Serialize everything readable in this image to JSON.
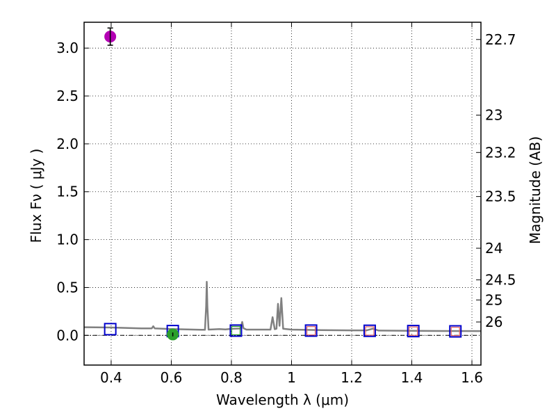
{
  "chart_data": {
    "type": "scatter",
    "xlabel": "Wavelength  λ (μm)",
    "ylabel": "Flux  Fν  ( μJy )",
    "ylabel_right": "Magnitude (AB)",
    "xlim": [
      0.31,
      1.63
    ],
    "ylim": [
      -0.31,
      3.27
    ],
    "x_ticks": [
      0.4,
      0.6,
      0.8,
      1.0,
      1.2,
      1.4,
      1.6
    ],
    "x_tick_labels": [
      "0.4",
      "0.6",
      "0.8",
      "1",
      "1.2",
      "1.4",
      "1.6"
    ],
    "y_ticks": [
      0.0,
      0.5,
      1.0,
      1.5,
      2.0,
      2.5,
      3.0
    ],
    "y_tick_labels": [
      "0.0",
      "0.5",
      "1.0",
      "1.5",
      "2.0",
      "2.5",
      "3.0"
    ],
    "right_ticks": [
      {
        "flux": 3.09,
        "label": "22.7"
      },
      {
        "flux": 2.3,
        "label": "23"
      },
      {
        "flux": 1.91,
        "label": "23.2"
      },
      {
        "flux": 1.45,
        "label": "23.5"
      },
      {
        "flux": 0.91,
        "label": "24"
      },
      {
        "flux": 0.58,
        "label": "24.5"
      },
      {
        "flux": 0.37,
        "label": "25"
      },
      {
        "flux": 0.14,
        "label": "26"
      }
    ],
    "grid": true,
    "series": [
      {
        "kind": "line",
        "color": "#808080",
        "points": [
          [
            0.31,
            0.085
          ],
          [
            0.4,
            0.082
          ],
          [
            0.5,
            0.073
          ],
          [
            0.535,
            0.073
          ],
          [
            0.54,
            0.095
          ],
          [
            0.545,
            0.073
          ],
          [
            0.6,
            0.066
          ],
          [
            0.7,
            0.058
          ],
          [
            0.712,
            0.058
          ],
          [
            0.716,
            0.3
          ],
          [
            0.718,
            0.56
          ],
          [
            0.72,
            0.3
          ],
          [
            0.724,
            0.06
          ],
          [
            0.76,
            0.066
          ],
          [
            0.78,
            0.062
          ],
          [
            0.8,
            0.068
          ],
          [
            0.83,
            0.072
          ],
          [
            0.836,
            0.14
          ],
          [
            0.84,
            0.075
          ],
          [
            0.85,
            0.06
          ],
          [
            0.93,
            0.06
          ],
          [
            0.937,
            0.19
          ],
          [
            0.944,
            0.065
          ],
          [
            0.95,
            0.07
          ],
          [
            0.955,
            0.33
          ],
          [
            0.96,
            0.1
          ],
          [
            0.966,
            0.39
          ],
          [
            0.972,
            0.07
          ],
          [
            1.0,
            0.06
          ],
          [
            1.1,
            0.055
          ],
          [
            1.2,
            0.052
          ],
          [
            1.25,
            0.052
          ],
          [
            1.27,
            0.07
          ],
          [
            1.29,
            0.05
          ],
          [
            1.4,
            0.048
          ],
          [
            1.5,
            0.046
          ],
          [
            1.63,
            0.045
          ]
        ]
      },
      {
        "kind": "model-photometry",
        "marker": "square",
        "color": "#0000cc",
        "points": [
          [
            0.397,
            0.065
          ],
          [
            0.605,
            0.045
          ],
          [
            0.815,
            0.05
          ],
          [
            1.065,
            0.05
          ],
          [
            1.26,
            0.048
          ],
          [
            1.405,
            0.045
          ],
          [
            1.545,
            0.042
          ]
        ]
      },
      {
        "kind": "upper-limit",
        "marker": "square",
        "color": "#e06060",
        "points": [
          [
            1.065,
            0.048
          ],
          [
            1.26,
            0.046
          ],
          [
            1.405,
            0.044
          ],
          [
            1.545,
            0.041
          ]
        ]
      },
      {
        "kind": "detection",
        "marker": "square",
        "color": "#2ca02c",
        "points": [
          [
            0.815,
            0.05
          ]
        ]
      },
      {
        "kind": "observed",
        "marker": "circle",
        "color": "#2ca02c",
        "points": [
          [
            0.605,
            0.01
          ]
        ],
        "err": [
          0.02
        ]
      },
      {
        "kind": "observed",
        "marker": "circle",
        "color": "#b300b3",
        "points": [
          [
            0.397,
            3.12
          ]
        ],
        "err": [
          0.09
        ]
      }
    ]
  }
}
